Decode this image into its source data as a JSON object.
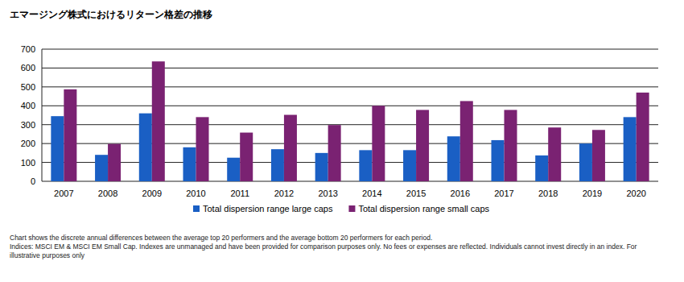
{
  "chart_data": {
    "type": "bar",
    "title": "エマージング株式におけるリターン格差の推移",
    "categories": [
      "2007",
      "2008",
      "2009",
      "2010",
      "2011",
      "2012",
      "2013",
      "2014",
      "2015",
      "2016",
      "2017",
      "2018",
      "2019",
      "2020"
    ],
    "series": [
      {
        "name": "Total dispersion range large caps",
        "color": "#1a5fc4",
        "values": [
          345,
          140,
          360,
          180,
          125,
          170,
          150,
          165,
          165,
          238,
          218,
          137,
          200,
          340
        ]
      },
      {
        "name": "Total dispersion range small caps",
        "color": "#7a2272",
        "values": [
          487,
          198,
          635,
          340,
          258,
          352,
          298,
          400,
          378,
          425,
          378,
          285,
          272,
          470
        ]
      }
    ],
    "ylim": [
      0,
      700
    ],
    "yticks": [
      0,
      100,
      200,
      300,
      400,
      500,
      600,
      700
    ],
    "grid": true,
    "legend": "bottom",
    "annotations": [
      "Chart shows the discrete annual differences between the average top 20 performers and the average bottom 20 performers for each period.",
      "Indices: MSCI EM & MSCI EM Small Cap. Indexes are unmanaged and have been provided for comparison purposes only. No fees or expenses are reflected. Individuals cannot invest directly in an index. For",
      "illustrative purposes only"
    ]
  }
}
